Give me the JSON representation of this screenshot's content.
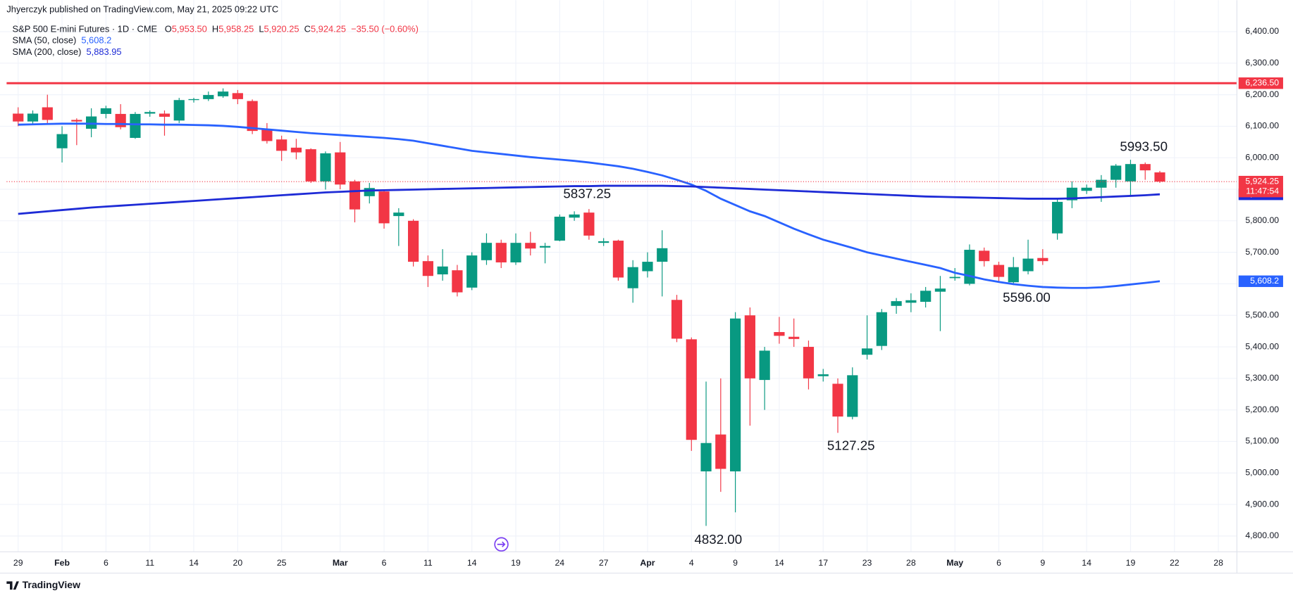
{
  "header": {
    "published": "Jhyerczyk published on TradingView.com, May 21, 2025 09:22 UTC",
    "symbol": "S&P 500 E-mini Futures · 1D · CME",
    "ohlc": [
      {
        "key": "O",
        "value": "5,953.50"
      },
      {
        "key": "H",
        "value": "5,958.25"
      },
      {
        "key": "L",
        "value": "5,920.25"
      },
      {
        "key": "C",
        "value": "5,924.25"
      }
    ],
    "change": "−35.50 (−0.60%)"
  },
  "footer": {
    "brand": "TradingView"
  },
  "chart_data": {
    "type": "candlestick",
    "categories": [
      "29",
      null,
      null,
      "Feb",
      null,
      null,
      "6",
      null,
      null,
      "11",
      null,
      null,
      "14",
      null,
      null,
      "20",
      null,
      null,
      "25",
      null,
      null,
      null,
      "Mar",
      null,
      null,
      "6",
      null,
      null,
      "11",
      null,
      null,
      "14",
      null,
      null,
      "19",
      null,
      null,
      "24",
      null,
      null,
      "27",
      null,
      null,
      "Apr",
      null,
      null,
      "4",
      null,
      null,
      "9",
      null,
      null,
      "14",
      null,
      null,
      "17",
      null,
      null,
      "23",
      null,
      null,
      "28",
      null,
      null,
      "May",
      null,
      null,
      "6",
      null,
      null,
      "9",
      null,
      null,
      "14",
      null,
      null,
      "19",
      null,
      null,
      "22",
      null,
      null,
      "28"
    ],
    "open": [
      6140,
      6115,
      6160,
      6030,
      6120,
      6092,
      6139,
      6139,
      6063,
      6140,
      6140,
      6118,
      6183,
      6186,
      6195,
      6205,
      6180,
      6090,
      6058,
      6032,
      6027,
      5925,
      6017,
      5925,
      5878,
      5893,
      5815,
      5800,
      5672,
      5630,
      5643,
      5588,
      5675,
      5730,
      5668,
      5730,
      5715,
      5737,
      5810,
      5826,
      5730,
      5737,
      5586,
      5640,
      5670,
      5549,
      5424,
      5005,
      5122,
      5005,
      5500,
      5295,
      5447,
      5432,
      5400,
      5307,
      5283,
      5178,
      5375,
      5403,
      5530,
      5540,
      5543,
      5575,
      5618,
      5600,
      5705,
      5660,
      5605,
      5640,
      5682,
      5760,
      5865,
      5895,
      5905,
      5930,
      5925,
      5980,
      5953.5,
      null,
      null,
      null,
      null
    ],
    "high": [
      6160,
      6150,
      6200,
      6100,
      6125,
      6157,
      6165,
      6170,
      6145,
      6150,
      6150,
      6190,
      6190,
      6210,
      6220,
      6215,
      6185,
      6110,
      6070,
      6060,
      6030,
      6020,
      6050,
      5930,
      5920,
      5900,
      5840,
      5805,
      5690,
      5710,
      5660,
      5700,
      5760,
      5740,
      5760,
      5765,
      5730,
      5820,
      5830,
      5837.25,
      5745,
      5740,
      5675,
      5700,
      5770,
      5565,
      5430,
      5290,
      5300,
      5510,
      5525,
      5400,
      5495,
      5490,
      5420,
      5330,
      5300,
      5335,
      5500,
      5520,
      5555,
      5570,
      5590,
      5625,
      5650,
      5725,
      5715,
      5670,
      5685,
      5740,
      5710,
      5870,
      5925,
      5915,
      5945,
      5980,
      5993.5,
      5985,
      5958.25,
      null,
      null,
      null,
      null
    ],
    "low": [
      6100,
      6105,
      6110,
      5985,
      6040,
      6065,
      6125,
      6090,
      6060,
      6130,
      6070,
      6110,
      6175,
      6180,
      6190,
      6170,
      6075,
      6045,
      5990,
      5995,
      5920,
      5899,
      5900,
      5795,
      5855,
      5775,
      5720,
      5655,
      5590,
      5610,
      5560,
      5580,
      5660,
      5650,
      5660,
      5690,
      5665,
      5735,
      5800,
      5740,
      5720,
      5610,
      5540,
      5620,
      5560,
      5415,
      5070,
      4832,
      4940,
      4875,
      5150,
      5200,
      5410,
      5400,
      5265,
      5290,
      5127.25,
      5170,
      5360,
      5390,
      5505,
      5510,
      5525,
      5450,
      5610,
      5595,
      5655,
      5605,
      5596,
      5630,
      5660,
      5740,
      5840,
      5885,
      5860,
      5905,
      5880,
      5930,
      5920.25,
      null,
      null,
      null,
      null
    ],
    "close": [
      6115,
      6140,
      6120,
      6075,
      6115,
      6131,
      6157,
      6097,
      6139,
      6145,
      6130,
      6183,
      6186,
      6199,
      6210,
      6186,
      6085,
      6053,
      6022,
      6017,
      5925,
      6014,
      5915,
      5836,
      5904,
      5792,
      5826,
      5670,
      5625,
      5655,
      5573,
      5690,
      5730,
      5668,
      5730,
      5712,
      5720,
      5813,
      5820,
      5753,
      5735,
      5620,
      5653,
      5670,
      5713,
      5426,
      5105,
      5095,
      5013,
      5490,
      5300,
      5388,
      5435,
      5425,
      5300,
      5313,
      5179,
      5310,
      5395,
      5510,
      5545,
      5548,
      5578,
      5585,
      5622,
      5708,
      5672,
      5622,
      5653,
      5680,
      5672,
      5860,
      5905,
      5905,
      5930,
      5975,
      5980,
      5960,
      5924.25,
      null,
      null,
      null,
      null
    ],
    "up_color": "#089981",
    "down_color": "#f23645",
    "series": [
      {
        "name": "SMA (50, close)",
        "color": "#2962ff",
        "value_label": "5,608.2",
        "values": [
          6105,
          6106,
          6107,
          6108,
          6108,
          6108,
          6107,
          6107,
          6106,
          6106,
          6105,
          6105,
          6104,
          6103,
          6101,
          6098,
          6094,
          6090,
          6086,
          6082,
          6078,
          6075,
          6072,
          6069,
          6066,
          6063,
          6059,
          6054,
          6046,
          6038,
          6030,
          6022,
          6017,
          6012,
          6007,
          6002,
          5998,
          5994,
          5990,
          5985,
          5979,
          5973,
          5965,
          5955,
          5944,
          5930,
          5915,
          5895,
          5870,
          5850,
          5830,
          5815,
          5795,
          5775,
          5757,
          5740,
          5727,
          5714,
          5700,
          5690,
          5680,
          5670,
          5660,
          5650,
          5635,
          5625,
          5614,
          5606,
          5599,
          5594,
          5590,
          5588,
          5587,
          5587,
          5589,
          5593,
          5598,
          5603,
          5608.2,
          null,
          null,
          null,
          null
        ]
      },
      {
        "name": "SMA (200, close)",
        "color": "#1e2bd6",
        "value_label": "5,883.95",
        "values": [
          5822,
          5826,
          5830,
          5834,
          5838,
          5842,
          5845,
          5848,
          5851,
          5854,
          5857,
          5860,
          5863,
          5866,
          5869,
          5872,
          5875,
          5878,
          5881,
          5884,
          5887,
          5890,
          5892,
          5894,
          5896,
          5897,
          5898,
          5899,
          5900,
          5901,
          5902,
          5903,
          5904,
          5905,
          5906,
          5907,
          5908,
          5909,
          5910,
          5910,
          5911,
          5911,
          5911,
          5911,
          5911,
          5910,
          5909,
          5907,
          5905,
          5903,
          5901,
          5899,
          5897,
          5895,
          5893,
          5891,
          5889,
          5887,
          5885,
          5883,
          5881,
          5879,
          5877,
          5876,
          5875,
          5874,
          5873,
          5872,
          5871,
          5870,
          5870,
          5870,
          5871,
          5873,
          5875,
          5877,
          5879,
          5881,
          5883.95,
          null,
          null,
          null,
          null
        ]
      }
    ],
    "ylim": [
      4750,
      6500
    ],
    "yticks": [
      {
        "value": 4800,
        "label": "4,800.00"
      },
      {
        "value": 4900,
        "label": "4,900.00"
      },
      {
        "value": 5000,
        "label": "5,000.00"
      },
      {
        "value": 5100,
        "label": "5,100.00"
      },
      {
        "value": 5200,
        "label": "5,200.00"
      },
      {
        "value": 5300,
        "label": "5,300.00"
      },
      {
        "value": 5400,
        "label": "5,400.00"
      },
      {
        "value": 5500,
        "label": "5,500.00"
      },
      {
        "value": 5600,
        "label": "5,600.00"
      },
      {
        "value": 5700,
        "label": "5,700.00"
      },
      {
        "value": 5800,
        "label": "5,800.00"
      },
      {
        "value": 5900,
        "label": "5,900.00"
      },
      {
        "value": 6000,
        "label": "6,000.00"
      },
      {
        "value": 6100,
        "label": "6,100.00"
      },
      {
        "value": 6200,
        "label": "6,200.00"
      },
      {
        "value": 6300,
        "label": "6,300.00"
      },
      {
        "value": 6400,
        "label": "6,400.00"
      }
    ],
    "grid": true,
    "hlines": [
      {
        "value": 6236.5,
        "label": "6,236.50",
        "color": "#f23645"
      }
    ],
    "last_price": {
      "value": 5924.25,
      "label": "5,924.25",
      "countdown": "11:47:54",
      "color": "#f23645"
    },
    "annotations": [
      "5993.50",
      "5837.25",
      "4832.00",
      "5127.25",
      "5596.00"
    ]
  }
}
